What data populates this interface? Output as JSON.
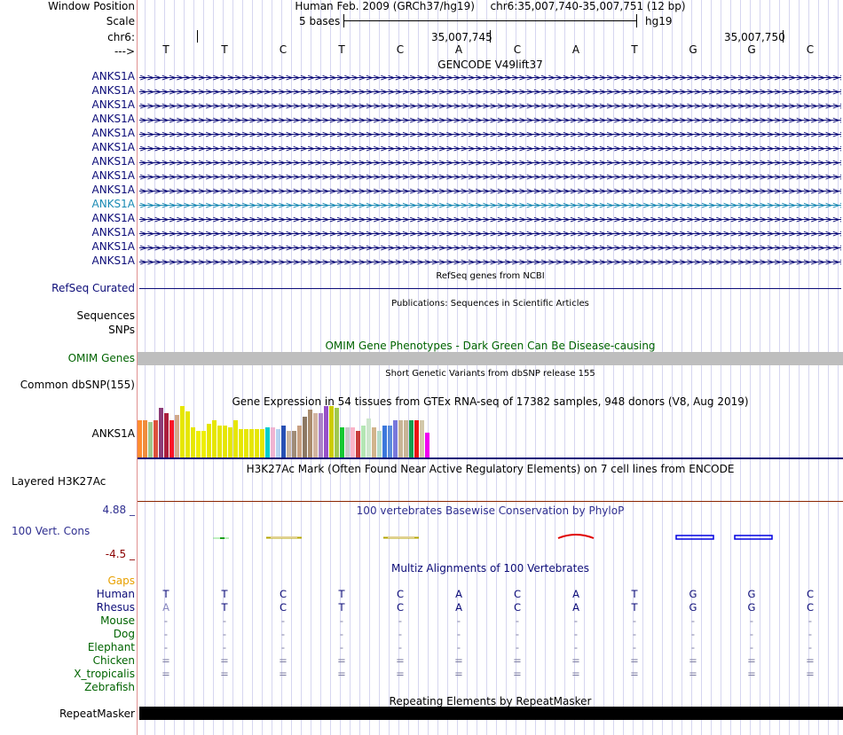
{
  "labels": {
    "window_position": "Window Position",
    "scale": "Scale",
    "chr": "chr6:",
    "strand": "--->",
    "gene_tracks": [
      "ANKS1A",
      "ANKS1A",
      "ANKS1A",
      "ANKS1A",
      "ANKS1A",
      "ANKS1A",
      "ANKS1A",
      "ANKS1A",
      "ANKS1A",
      "ANKS1A",
      "ANKS1A",
      "ANKS1A",
      "ANKS1A",
      "ANKS1A"
    ],
    "refseq": "RefSeq Curated",
    "sequences": "Sequences",
    "snps": "SNPs",
    "omim": "OMIM Genes",
    "dbsnp": "Common dbSNP(155)",
    "gtex": "ANKS1A",
    "h3k27ac": "Layered H3K27Ac",
    "cons_max": "4.88 _",
    "cons": "100 Vert. Cons",
    "cons_min": "-4.5 _",
    "gaps": "Gaps",
    "species": [
      "Human",
      "Rhesus",
      "Mouse",
      "Dog",
      "Elephant",
      "Chicken",
      "X_tropicalis",
      "Zebrafish"
    ],
    "repeatmasker": "RepeatMasker"
  },
  "header": {
    "assembly": "Human Feb. 2009 (GRCh37/hg19)",
    "position": "chr6:35,007,740-35,007,751 (12 bp)",
    "scale_text": "5 bases",
    "scale_db": "hg19",
    "ruler_1": "35,007,745",
    "ruler_2": "35,007,750"
  },
  "sequence": [
    "T",
    "T",
    "C",
    "T",
    "C",
    "A",
    "C",
    "A",
    "T",
    "G",
    "G",
    "C"
  ],
  "track_titles": {
    "gencode": "GENCODE V49lift37",
    "refseq": "RefSeq genes from NCBI",
    "publications": "Publications: Sequences in Scientific Articles",
    "omim": "OMIM Gene Phenotypes - Dark Green Can Be Disease-causing",
    "dbsnp": "Short Genetic Variants from dbSNP release 155",
    "gtex": "Gene Expression in 54 tissues from GTEx RNA-seq of 17382 samples, 948 donors (V8, Aug 2019)",
    "h3k27ac": "H3K27Ac Mark (Often Found Near Active Regulatory Elements) on 7 cell lines from ENCODE",
    "phylop": "100 vertebrates Basewise Conservation by PhyloP",
    "multiz": "Multiz Alignments of 100 Vertebrates",
    "repeatmasker": "Repeating Elements by RepeatMasker"
  },
  "alignment": {
    "Human": [
      "T",
      "T",
      "C",
      "T",
      "C",
      "A",
      "C",
      "A",
      "T",
      "G",
      "G",
      "C"
    ],
    "Rhesus": [
      "A",
      "T",
      "C",
      "T",
      "C",
      "A",
      "C",
      "A",
      "T",
      "G",
      "G",
      "C"
    ],
    "Mouse": [
      "-",
      "-",
      "-",
      "-",
      "-",
      "-",
      "-",
      "-",
      "-",
      "-",
      "-",
      "-"
    ],
    "Dog": [
      "-",
      "-",
      "-",
      "-",
      "-",
      "-",
      "-",
      "-",
      "-",
      "-",
      "-",
      "-"
    ],
    "Elephant": [
      "-",
      "-",
      "-",
      "-",
      "-",
      "-",
      "-",
      "-",
      "-",
      "-",
      "-",
      "-"
    ],
    "Chicken": [
      "=",
      "=",
      "=",
      "=",
      "=",
      "=",
      "=",
      "=",
      "=",
      "=",
      "=",
      "="
    ],
    "X_tropicalis": [
      "=",
      "=",
      "=",
      "=",
      "=",
      "=",
      "=",
      "=",
      "=",
      "=",
      "=",
      "="
    ],
    "Zebrafish": [
      "",
      "",
      "",
      "",
      "",
      "",
      "",
      "",
      "",
      "",
      "",
      ""
    ]
  },
  "gtex_levels": [
    0.42,
    0.42,
    0.4,
    0.42,
    0.56,
    0.5,
    0.42,
    0.48,
    0.58,
    0.52,
    0.34,
    0.3,
    0.3,
    0.38,
    0.42,
    0.36,
    0.36,
    0.34,
    0.42,
    0.32,
    0.32,
    0.32,
    0.32,
    0.32,
    0.34,
    0.34,
    0.32,
    0.36,
    0.3,
    0.3,
    0.36,
    0.46,
    0.54,
    0.5,
    0.5,
    0.58,
    0.58,
    0.56,
    0.34,
    0.34,
    0.34,
    0.3,
    0.36,
    0.44,
    0.34,
    0.3,
    0.36,
    0.36,
    0.42,
    0.42,
    0.42,
    0.42,
    0.42,
    0.42,
    0.28
  ],
  "colors": {
    "label_blue": "#0c0c78",
    "label_green": "#006400",
    "gaps_orange": "#e8a000",
    "gene_highlight": "#1a8ab4",
    "cons_blue": "#2f2f90",
    "cons_min_red": "#8b0000",
    "omim_bar": "#bebebe",
    "h3k27ac_line": "#8b2500",
    "repeat_bar": "#000000",
    "gtex": [
      "#ff8c2e",
      "#f08c3c",
      "#a0c88c",
      "#dc503c",
      "#8c3c78",
      "#aa1e3c",
      "#fa1428",
      "#d2aa8c",
      "#e6e600",
      "#e6e600",
      "#e6e600",
      "#eeee00",
      "#eeee00",
      "#e6e600",
      "#e6e600",
      "#e6e600",
      "#e6e600",
      "#e6e600",
      "#e6e600",
      "#e6e600",
      "#e6e600",
      "#e6e600",
      "#e6e600",
      "#e6e600",
      "#00cdcd",
      "#f0b4d2",
      "#b4d2f0",
      "#2850b4",
      "#c8b4a0",
      "#a08c78",
      "#c8a082",
      "#8c7864",
      "#aa8c6e",
      "#d2b4a0",
      "#aa82c8",
      "#9650c8",
      "#cdcd00",
      "#a0c850",
      "#14c832",
      "#c8c8c8",
      "#fab4c8",
      "#c83c3c",
      "#b4e6b4",
      "#cde6cd",
      "#d2b48c",
      "#b4dcc8",
      "#3c78dc",
      "#5a8cdc",
      "#7878dc",
      "#c8b496",
      "#c8b496",
      "#14a050",
      "#eb1414",
      "#d2c8aa",
      "#f000f0"
    ]
  }
}
